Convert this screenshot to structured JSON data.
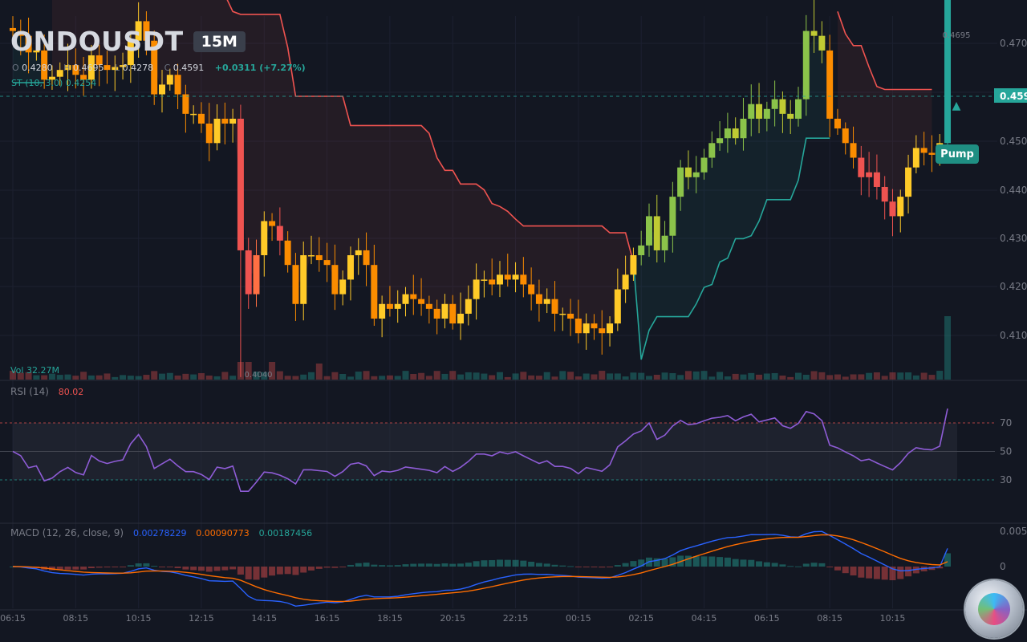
{
  "header": {
    "symbol": "ONDOUSDT",
    "timeframe": "15M",
    "ohlc": {
      "o_label": "O",
      "o": "0.4280",
      "h_label": "H",
      "h": "0.4695",
      "l_label": "L",
      "l": "0.4278",
      "c_label": "C",
      "c": "0.4591",
      "change": "+0.0311 (+7.27%)"
    },
    "supertrend": {
      "label": "ST (10, 3.0)",
      "value": "0.4254"
    }
  },
  "volume": {
    "label": "Vol",
    "value": "32.27M"
  },
  "rsi_header": {
    "label": "RSI (14)",
    "value": "80.02"
  },
  "macd_header": {
    "label": "MACD (12, 26, close, 9)",
    "macd": "0.00278229",
    "signal": "0.00090773",
    "hist": "0.00187456"
  },
  "colors": {
    "bg": "#131722",
    "grid": "#1c2030",
    "text": "#787b86",
    "st_down": "#ef5350",
    "st_up": "#26a69a",
    "rsi_line": "#8e5cd6",
    "macd_line": "#2962ff",
    "signal_line": "#ff6d00",
    "price_tag": "#26a69a"
  },
  "icons": {
    "logo": "ondo-coin-logo"
  },
  "chart_data": {
    "type": "candlestick",
    "interval": "15m",
    "x_tick_labels": [
      "06:15",
      "08:15",
      "10:15",
      "12:15",
      "14:15",
      "16:15",
      "18:15",
      "20:15",
      "22:15",
      "00:15",
      "02:15",
      "04:15",
      "06:15",
      "08:15",
      "10:15"
    ],
    "y_ticks": [
      "0.470",
      "0.450",
      "0.440",
      "0.430",
      "0.420",
      "0.410"
    ],
    "ylim": [
      0.4055,
      0.4715
    ],
    "last_price_label": "0.4591",
    "high_annotation": "0.4695",
    "low_annotation": "0.4040",
    "annotation": "Pump",
    "rsi_levels": [
      "70",
      "50",
      "30"
    ],
    "macd_ticks": [
      "0.005",
      "0"
    ],
    "close": [
      0.4395,
      0.439,
      0.4373,
      0.4375,
      0.4345,
      0.4348,
      0.4355,
      0.436,
      0.435,
      0.4345,
      0.437,
      0.436,
      0.4355,
      0.4358,
      0.436,
      0.4385,
      0.4405,
      0.4385,
      0.433,
      0.434,
      0.435,
      0.433,
      0.431,
      0.431,
      0.43,
      0.428,
      0.4305,
      0.43,
      0.4305,
      0.417,
      0.4125,
      0.4165,
      0.42,
      0.4195,
      0.418,
      0.4155,
      0.4115,
      0.4165,
      0.4165,
      0.416,
      0.4155,
      0.4125,
      0.414,
      0.4165,
      0.417,
      0.4155,
      0.41,
      0.4115,
      0.411,
      0.4115,
      0.4125,
      0.412,
      0.4115,
      0.411,
      0.41,
      0.4115,
      0.4095,
      0.4105,
      0.412,
      0.414,
      0.414,
      0.4135,
      0.4145,
      0.414,
      0.4145,
      0.4135,
      0.4125,
      0.4115,
      0.412,
      0.4105,
      0.4105,
      0.41,
      0.4085,
      0.4095,
      0.409,
      0.4085,
      0.4095,
      0.413,
      0.4145,
      0.4165,
      0.4175,
      0.4205,
      0.417,
      0.4185,
      0.4225,
      0.4255,
      0.4245,
      0.425,
      0.4265,
      0.428,
      0.4285,
      0.4295,
      0.4285,
      0.4305,
      0.432,
      0.4305,
      0.4315,
      0.4325,
      0.431,
      0.4305,
      0.4325,
      0.4395,
      0.439,
      0.4375,
      0.4305,
      0.4295,
      0.428,
      0.4265,
      0.4245,
      0.425,
      0.4235,
      0.422,
      0.4205,
      0.4225,
      0.4255,
      0.4275,
      0.427,
      0.4268,
      0.428,
      0.4591
    ],
    "open_first": 0.4398,
    "supertrend": [
      {
        "dir": "up",
        "from": 0,
        "to": 4,
        "values": [
          0.4342
        ]
      },
      {
        "dir": "down",
        "from": 5,
        "to": 79,
        "values": [
          0.4448,
          0.4448,
          0.4448,
          0.4448,
          0.4448,
          0.4448,
          0.4448,
          0.4448,
          0.4448,
          0.4448,
          0.4448,
          0.4448,
          0.4448,
          0.4448,
          0.4448,
          0.4448,
          0.4448,
          0.4448,
          0.4448,
          0.4448,
          0.4448,
          0.4443,
          0.4432,
          0.4415,
          0.4412,
          0.4412,
          0.4412,
          0.4412,
          0.4412,
          0.4412,
          0.4378,
          0.4328,
          0.4328,
          0.4328,
          0.4328,
          0.4328,
          0.4328,
          0.4328,
          0.4298,
          0.4298,
          0.4298,
          0.4298,
          0.4298,
          0.4298,
          0.4298,
          0.4298,
          0.4298,
          0.4298,
          0.429,
          0.4265,
          0.4252,
          0.4252,
          0.4238,
          0.4238,
          0.4238,
          0.4232,
          0.4218,
          0.4215,
          0.421,
          0.4202,
          0.4195,
          0.4195,
          0.4195,
          0.4195,
          0.4195,
          0.4195,
          0.4195,
          0.4195,
          0.4195,
          0.4195,
          0.4195,
          0.4188,
          0.4188,
          0.4188,
          0.4158
        ]
      },
      {
        "dir": "up",
        "from": 79,
        "to": 104,
        "values": [
          0.4158,
          0.4058,
          0.4088,
          0.4102,
          0.4102,
          0.4102,
          0.4102,
          0.4102,
          0.4115,
          0.4132,
          0.4135,
          0.4158,
          0.4162,
          0.4182,
          0.4182,
          0.4185,
          0.42,
          0.4222,
          0.4222,
          0.4222,
          0.4222,
          0.4242,
          0.4285,
          0.4285,
          0.4285,
          0.4285
        ]
      },
      {
        "dir": "down",
        "from": 105,
        "to": 117,
        "values": [
          0.4415,
          0.4392,
          0.438,
          0.438,
          0.4358,
          0.4338,
          0.4335,
          0.4335,
          0.4335,
          0.4335,
          0.4335,
          0.4335,
          0.4335
        ]
      },
      {
        "dir": "up",
        "from": 117,
        "to": 117,
        "values": [
          0.4255
        ]
      }
    ]
  }
}
